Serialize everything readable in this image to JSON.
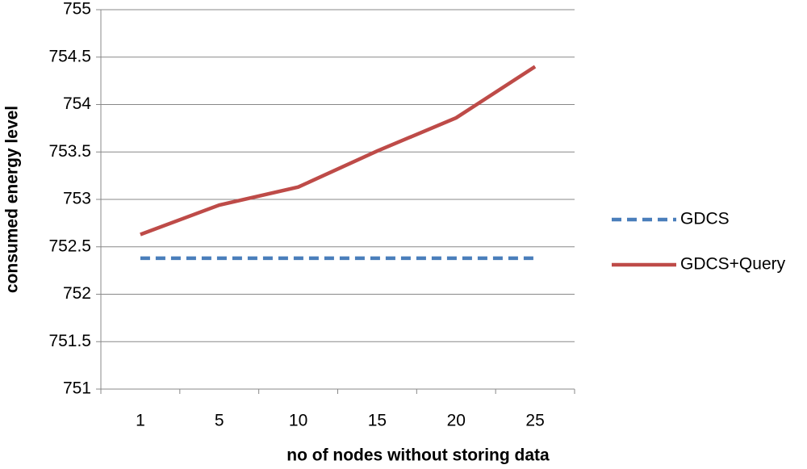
{
  "chart_data": {
    "type": "line",
    "x_label": "no of nodes without storing data",
    "y_label": "consumed energy level",
    "categories": [
      "1",
      "5",
      "10",
      "15",
      "20",
      "25"
    ],
    "series": [
      {
        "name": "GDCS",
        "color": "#4a7ebb",
        "dashed": true,
        "values": [
          752.38,
          752.38,
          752.38,
          752.38,
          752.38,
          752.38
        ]
      },
      {
        "name": "GDCS+Query",
        "color": "#be4b48",
        "dashed": false,
        "values": [
          752.63,
          752.94,
          753.13,
          753.51,
          753.86,
          754.4
        ]
      }
    ],
    "ylim": [
      751,
      755
    ],
    "yticks": [
      751,
      751.5,
      752,
      752.5,
      753,
      753.5,
      754,
      754.5,
      755
    ],
    "grid": true,
    "legend": "right"
  }
}
